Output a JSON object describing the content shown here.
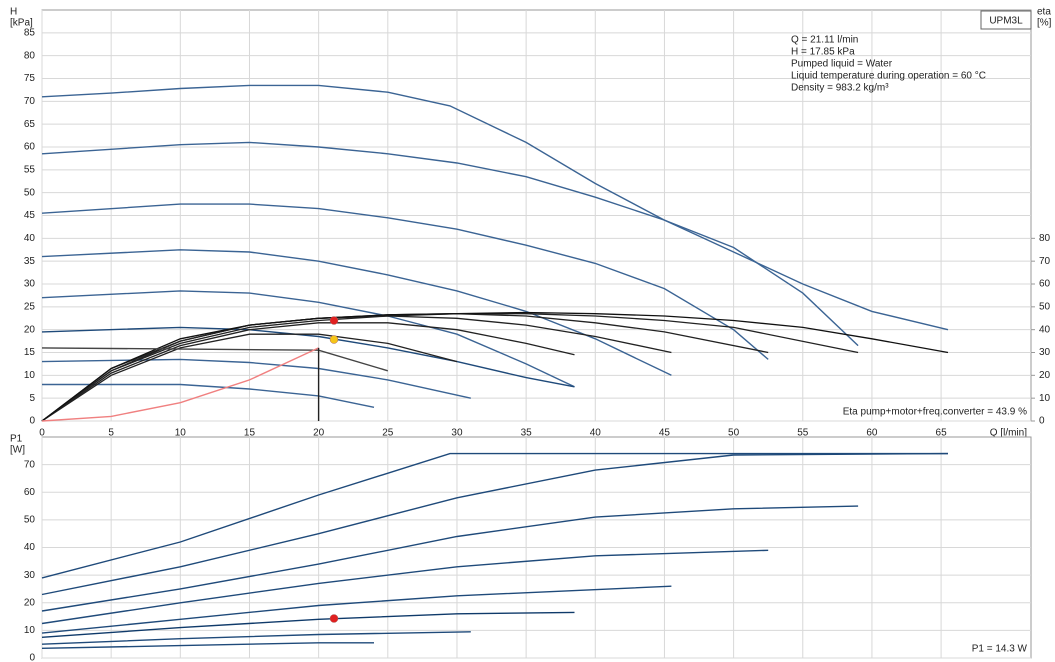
{
  "chart_data": [
    {
      "type": "line",
      "y_label": [
        "H",
        "[kPa]"
      ],
      "y2_label": [
        "eta",
        "[%]"
      ],
      "x_label": "Q [l/min]",
      "legend_box": "UPM3L",
      "annotations": [
        "Q = 21.11 l/min",
        "H = 17.85 kPa",
        "Pumped liquid = Water",
        "Liquid temperature during operation = 60 °C",
        "Density = 983.2 kg/m³"
      ],
      "footer": "Eta pump+motor+freq.converter = 43.9 %",
      "xlim": [
        0,
        71.5
      ],
      "xticks": [
        0,
        5,
        10,
        15,
        20,
        25,
        30,
        35,
        40,
        45,
        50,
        55,
        60,
        65
      ],
      "ylim": [
        0,
        90
      ],
      "yticks": [
        0,
        5,
        10,
        15,
        20,
        25,
        30,
        35,
        40,
        45,
        50,
        55,
        60,
        65,
        70,
        75,
        80,
        85
      ],
      "y2lim": [
        0,
        180
      ],
      "y2ticks": [
        0,
        10,
        20,
        30,
        40,
        50,
        60,
        70,
        80
      ],
      "grid": true,
      "series": [
        {
          "color": "#3b6494",
          "x": [
            0,
            5,
            10,
            15,
            20,
            25,
            29.5,
            35,
            40,
            45,
            50,
            55,
            60,
            65.5
          ],
          "values": [
            71,
            71.8,
            72.8,
            73.5,
            73.5,
            72,
            69,
            61,
            52,
            44,
            37,
            30,
            24,
            20
          ]
        },
        {
          "color": "#3b6494",
          "x": [
            0,
            10,
            15,
            20,
            25,
            30,
            35,
            40,
            45,
            50,
            55,
            59
          ],
          "values": [
            58.5,
            60.5,
            61,
            60,
            58.5,
            56.5,
            53.5,
            49,
            44,
            38,
            28,
            16.5
          ]
        },
        {
          "color": "#3b6494",
          "x": [
            0,
            10,
            15,
            20,
            25,
            30,
            35,
            40,
            45,
            50,
            52.5
          ],
          "values": [
            45.5,
            47.5,
            47.5,
            46.5,
            44.5,
            42,
            38.5,
            34.5,
            29,
            20,
            13.5
          ]
        },
        {
          "color": "#3b6494",
          "x": [
            0,
            10,
            15,
            20,
            25,
            30,
            35,
            40,
            45.5
          ],
          "values": [
            36,
            37.5,
            37,
            35,
            32,
            28.5,
            24,
            18,
            10
          ]
        },
        {
          "color": "#3b6494",
          "x": [
            0,
            10,
            15,
            20,
            25,
            30,
            35,
            38.5
          ],
          "values": [
            27,
            28.5,
            28,
            26,
            23,
            19,
            12.5,
            7.5
          ]
        },
        {
          "color": "#1f4a7a",
          "x": [
            0,
            10,
            15,
            20,
            25,
            30,
            35,
            38.5
          ],
          "values": [
            19.5,
            20.5,
            20,
            18.5,
            16,
            13,
            9.5,
            7.5
          ]
        },
        {
          "color": "#3b6494",
          "x": [
            0,
            10,
            15,
            20,
            25,
            31
          ],
          "values": [
            13,
            13.5,
            12.8,
            11.5,
            9,
            5
          ]
        },
        {
          "color": "#3b6494",
          "x": [
            0,
            10,
            15,
            20,
            24
          ],
          "values": [
            8,
            8,
            7,
            5.5,
            3
          ]
        },
        {
          "color": "#222222",
          "axis": "y2",
          "x": [
            0,
            5,
            10,
            15,
            20,
            25,
            30
          ],
          "values": [
            0,
            20,
            32,
            38,
            38,
            34,
            26
          ]
        },
        {
          "color": "#222222",
          "axis": "y2",
          "x": [
            0,
            5,
            10,
            15,
            20,
            25,
            30,
            35,
            38.5
          ],
          "values": [
            0,
            21,
            33,
            40,
            43,
            43,
            40,
            34,
            29
          ]
        },
        {
          "color": "#222222",
          "axis": "y2",
          "x": [
            0,
            5,
            10,
            15,
            20,
            25,
            30,
            35,
            40,
            45.5
          ],
          "values": [
            0,
            22,
            34,
            41,
            44,
            46,
            45,
            42,
            37,
            30
          ]
        },
        {
          "color": "#222222",
          "axis": "y2",
          "x": [
            0,
            5,
            10,
            15,
            20,
            25,
            30,
            35,
            40,
            45,
            52.5
          ],
          "values": [
            0,
            22,
            35,
            42,
            45,
            46,
            47,
            46,
            43,
            39,
            30
          ]
        },
        {
          "color": "#222222",
          "axis": "y2",
          "x": [
            0,
            5,
            10,
            15,
            20,
            25,
            30,
            35,
            40,
            45,
            50,
            59
          ],
          "values": [
            0,
            23,
            35,
            42,
            45,
            46.5,
            47,
            47,
            46,
            44,
            41,
            30
          ]
        },
        {
          "color": "#111111",
          "axis": "y2",
          "x": [
            0,
            5,
            10,
            15,
            20,
            25,
            30,
            35,
            40,
            45,
            50,
            55,
            60,
            65.5
          ],
          "values": [
            0,
            23,
            36,
            42,
            45,
            46.5,
            47,
            47.5,
            47,
            46,
            44,
            41,
            36,
            30
          ]
        },
        {
          "color": "#444444",
          "x": [
            0,
            20,
            25
          ],
          "values": [
            16,
            15.5,
            11
          ]
        },
        {
          "color": "#f08080",
          "x": [
            0,
            5,
            10,
            15,
            20
          ],
          "values": [
            0,
            1,
            4,
            9,
            16
          ]
        },
        {
          "color": "#222222",
          "x": [
            20,
            20
          ],
          "values": [
            16,
            0
          ]
        }
      ],
      "markers": [
        {
          "x": 21.11,
          "y": 17.85,
          "color": "#f5c518"
        },
        {
          "x": 21.11,
          "y": 22,
          "color": "#e02020"
        }
      ]
    },
    {
      "type": "line",
      "y_label": [
        "P1",
        "[W]"
      ],
      "footer": "P1 = 14.3 W",
      "xlim": [
        0,
        71.5
      ],
      "xticks": [
        0,
        5,
        10,
        15,
        20,
        25,
        30,
        35,
        40,
        45,
        50,
        55,
        60,
        65
      ],
      "ylim": [
        0,
        80
      ],
      "yticks": [
        0,
        10,
        20,
        30,
        40,
        50,
        60,
        70
      ],
      "grid": true,
      "series": [
        {
          "color": "#1f4a7a",
          "x": [
            0,
            10,
            20,
            29.5,
            40,
            65.5
          ],
          "values": [
            29,
            42,
            59,
            74,
            74,
            74
          ]
        },
        {
          "color": "#1f4a7a",
          "x": [
            0,
            10,
            20,
            30,
            40,
            50,
            65.5
          ],
          "values": [
            23,
            33,
            45,
            58,
            68,
            73.5,
            74
          ]
        },
        {
          "color": "#1f4a7a",
          "x": [
            0,
            10,
            20,
            30,
            40,
            50,
            59
          ],
          "values": [
            17,
            25,
            34,
            44,
            51,
            54,
            55
          ]
        },
        {
          "color": "#1f4a7a",
          "x": [
            0,
            10,
            20,
            30,
            40,
            52.5
          ],
          "values": [
            12.5,
            20,
            27,
            33,
            37,
            39
          ]
        },
        {
          "color": "#1f4a7a",
          "x": [
            0,
            10,
            20,
            30,
            45.5
          ],
          "values": [
            9,
            14,
            19,
            22.5,
            26
          ]
        },
        {
          "color": "#0f3a6a",
          "x": [
            0,
            10,
            20,
            30,
            38.5
          ],
          "values": [
            7.5,
            11,
            14,
            16,
            16.5
          ]
        },
        {
          "color": "#1f4a7a",
          "x": [
            0,
            10,
            20,
            31
          ],
          "values": [
            5,
            7,
            8.5,
            9.5
          ]
        },
        {
          "color": "#1f4a7a",
          "x": [
            0,
            10,
            20,
            24
          ],
          "values": [
            3.5,
            4.5,
            5.5,
            5.5
          ]
        }
      ],
      "markers": [
        {
          "x": 21.11,
          "y": 14.3,
          "color": "#e02020"
        }
      ]
    }
  ]
}
